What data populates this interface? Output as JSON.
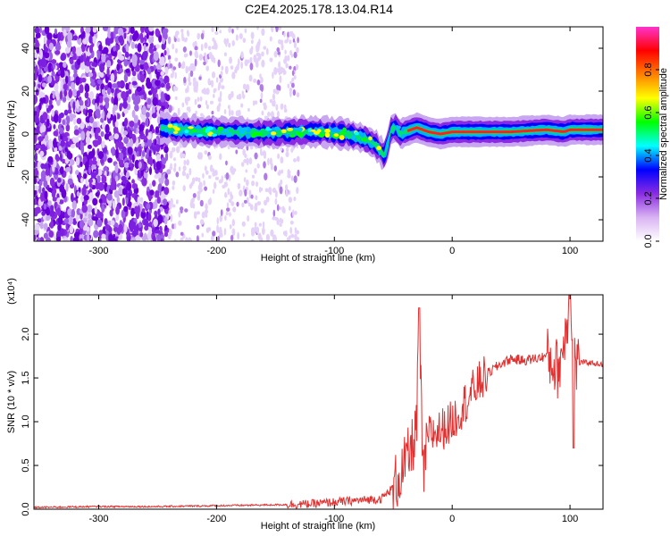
{
  "figure_title": "C2E4.2025.178.13.04.R14",
  "chart_data": [
    {
      "type": "heatmap",
      "xlabel": "Height of straight line (km)",
      "ylabel": "Frequency (Hz)",
      "xlim": [
        -355,
        128
      ],
      "ylim": [
        -50,
        50
      ],
      "x_ticks": [
        -300,
        -200,
        -100,
        0,
        100
      ],
      "y_ticks": [
        -40,
        -20,
        0,
        20,
        40
      ],
      "colorbar": {
        "label": "Normalized spectral amplitude",
        "range": [
          0,
          1
        ],
        "ticks": [
          "0.0",
          "0.2",
          "0.4",
          "0.6",
          "0.8"
        ],
        "colors": [
          "#ffffff",
          "#d9b3f2",
          "#8a2be2",
          "#0000ff",
          "#00ffff",
          "#00ff00",
          "#ffff00",
          "#ff8000",
          "#ff0000",
          "#ff33cc"
        ]
      },
      "ridge": {
        "x": [
          -248,
          -230,
          -210,
          -190,
          -170,
          -150,
          -130,
          -110,
          -90,
          -75,
          -65,
          -58,
          -55,
          -52,
          -48,
          -44,
          -40,
          -30,
          -20,
          -10,
          0,
          20,
          50,
          80,
          95,
          100,
          128
        ],
        "freq": [
          3,
          2,
          1,
          1,
          0.5,
          0.5,
          1,
          1,
          0,
          -2,
          -5,
          -10,
          -6,
          2,
          3,
          0,
          1,
          3,
          1,
          0,
          1,
          1,
          1,
          2,
          1,
          2,
          2
        ]
      }
    },
    {
      "type": "line",
      "xlabel": "Height of straight line (km)",
      "ylabel": "SNR (10 * v/v)",
      "y_multiplier": "(x10⁴)",
      "xlim": [
        -355,
        128
      ],
      "ylim": [
        0,
        2.45
      ],
      "x_ticks": [
        -300,
        -200,
        -100,
        0,
        100
      ],
      "y_ticks": [
        "0.0",
        "0.5",
        "1.0",
        "1.5",
        "2.0"
      ],
      "series": [
        {
          "color": "#e03030",
          "x": [
            -355,
            -300,
            -250,
            -200,
            -150,
            -120,
            -100,
            -80,
            -60,
            -50,
            -40,
            -34,
            -30,
            -28,
            -25,
            -20,
            -10,
            0,
            10,
            20,
            30,
            40,
            50,
            60,
            70,
            80,
            90,
            95,
            100,
            105,
            110,
            120,
            128
          ],
          "values": [
            0.02,
            0.03,
            0.03,
            0.04,
            0.05,
            0.06,
            0.08,
            0.1,
            0.12,
            0.25,
            0.5,
            0.7,
            1.0,
            2.3,
            0.35,
            0.85,
            0.9,
            1.0,
            1.2,
            1.4,
            1.55,
            1.65,
            1.72,
            1.7,
            1.72,
            1.75,
            1.6,
            1.9,
            2.45,
            1.65,
            1.68,
            1.67,
            1.65
          ]
        }
      ]
    }
  ]
}
